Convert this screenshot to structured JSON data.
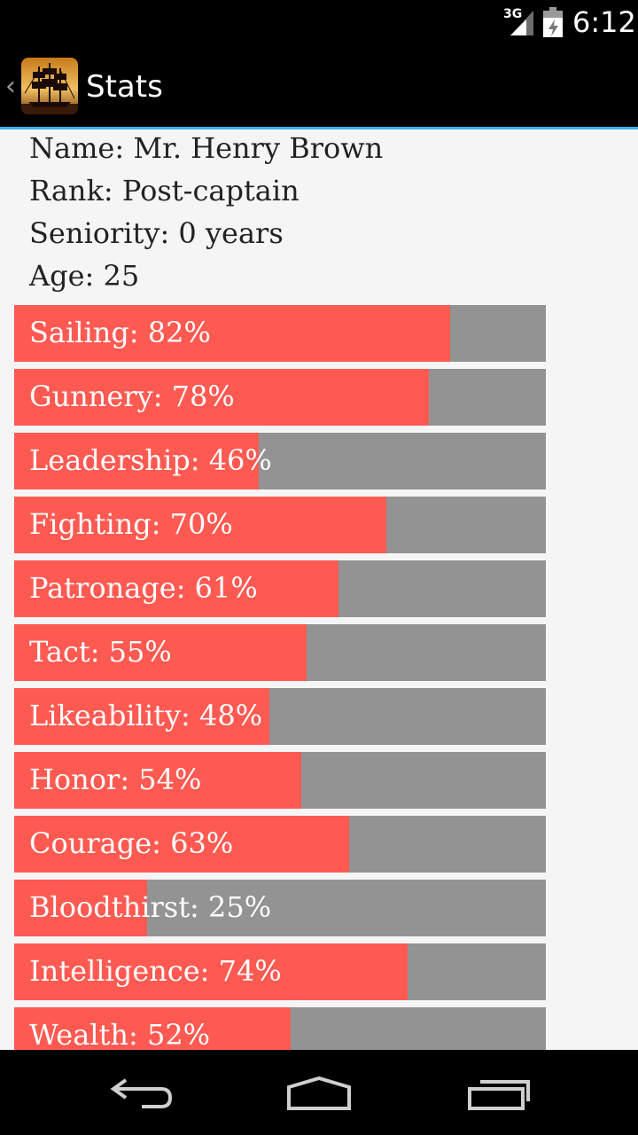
{
  "status_bar": {
    "network": "3G",
    "time": "6:12"
  },
  "action_bar": {
    "title": "Stats"
  },
  "profile": {
    "name": "Name: Mr. Henry Brown",
    "rank": "Rank: Post-captain",
    "seniority": "Seniority: 0 years",
    "age": "Age: 25"
  },
  "stats": [
    {
      "label": "Sailing: 82%",
      "value": 82
    },
    {
      "label": "Gunnery: 78%",
      "value": 78
    },
    {
      "label": "Leadership: 46%",
      "value": 46
    },
    {
      "label": "Fighting: 70%",
      "value": 70
    },
    {
      "label": "Patronage: 61%",
      "value": 61
    },
    {
      "label": "Tact: 55%",
      "value": 55
    },
    {
      "label": "Likeability: 48%",
      "value": 48
    },
    {
      "label": "Honor: 54%",
      "value": 54
    },
    {
      "label": "Courage: 63%",
      "value": 63
    },
    {
      "label": "Bloodthirst: 25%",
      "value": 25
    },
    {
      "label": "Intelligence: 74%",
      "value": 74
    },
    {
      "label": "Wealth: 52%",
      "value": 52
    }
  ],
  "colors": {
    "fill": "#ff5a52",
    "track": "#939393",
    "accent": "#33b5e5"
  },
  "icons": {
    "app": "ship-icon",
    "back": "back-icon",
    "home": "home-icon",
    "recents": "recents-icon"
  }
}
